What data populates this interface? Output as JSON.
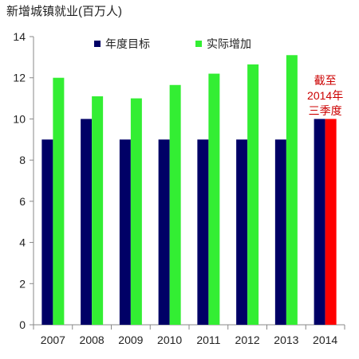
{
  "chart_data": {
    "type": "bar",
    "title": "新增城镇就业(百万人)",
    "categories": [
      "2007",
      "2008",
      "2009",
      "2010",
      "2011",
      "2012",
      "2013",
      "2014"
    ],
    "series": [
      {
        "name": "年度目标",
        "color": "#000066",
        "values": [
          9,
          10,
          9,
          9,
          9,
          9,
          9,
          10
        ]
      },
      {
        "name": "实际增加",
        "color": "#33ee33",
        "values": [
          12.0,
          11.1,
          11.0,
          11.65,
          12.2,
          12.65,
          13.1,
          10.0
        ]
      }
    ],
    "highlight": {
      "series": 1,
      "index": 7,
      "color": "#ff0000"
    },
    "annotation": {
      "lines": [
        "截至",
        "2014年",
        "三季度"
      ],
      "color": "#cc0000"
    },
    "ylim": [
      0,
      14
    ],
    "yticks": [
      0,
      2,
      4,
      6,
      8,
      10,
      12,
      14
    ],
    "grid": false,
    "legend_position": "top"
  }
}
